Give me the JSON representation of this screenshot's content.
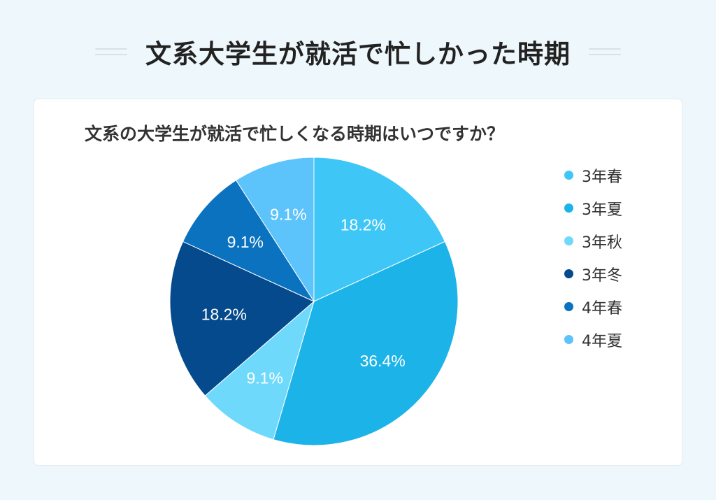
{
  "header": {
    "title": "文系大学生が就活で忙しかった時期"
  },
  "chart_data": {
    "type": "pie",
    "title": "文系の大学生が就活で忙しくなる時期はいつですか？",
    "categories": [
      "3年春",
      "3年夏",
      "3年秋",
      "3年冬",
      "4年春",
      "4年夏"
    ],
    "values": [
      18.2,
      36.4,
      9.1,
      18.2,
      9.1,
      9.1
    ],
    "data_labels": [
      "18.2%",
      "36.4%",
      "9.1%",
      "18.2%",
      "9.1%",
      "9.1%"
    ],
    "colors": [
      "#3ec6f7",
      "#1cb4e8",
      "#6fd9fb",
      "#044a8c",
      "#0a72bf",
      "#5cc3fb"
    ],
    "legend_position": "right",
    "start_angle_deg": 0,
    "direction": "clockwise"
  }
}
